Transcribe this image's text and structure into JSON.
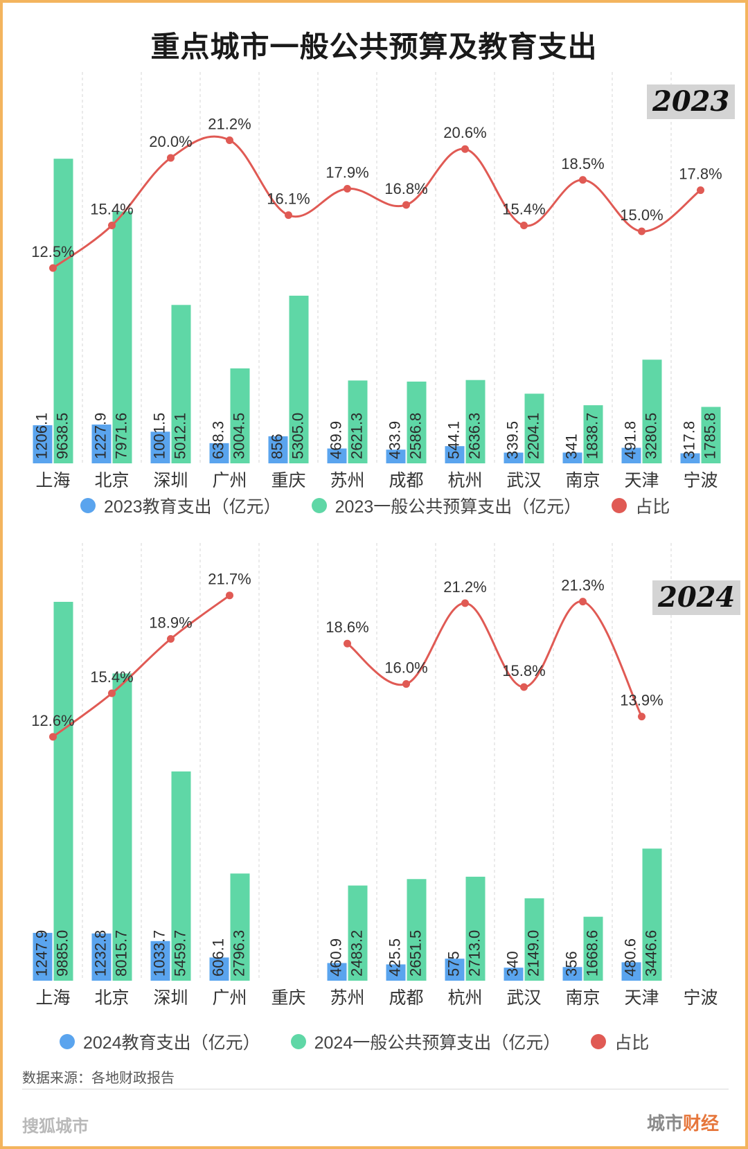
{
  "title": "重点城市一般公共预算及教育支出",
  "categories": [
    "上海",
    "北京",
    "深圳",
    "广州",
    "重庆",
    "苏州",
    "成都",
    "杭州",
    "武汉",
    "南京",
    "天津",
    "宁波"
  ],
  "colors": {
    "edu": "#5aa4ee",
    "budget": "#5fd7a6",
    "ratio": "#e05a54"
  },
  "chart_data": [
    {
      "type": "bar",
      "year_label": "2023",
      "categories": [
        "上海",
        "北京",
        "深圳",
        "广州",
        "重庆",
        "苏州",
        "成都",
        "杭州",
        "武汉",
        "南京",
        "天津",
        "宁波"
      ],
      "series": [
        {
          "name": "2023教育支出（亿元）",
          "type": "bar",
          "values": [
            1206.1,
            1227.9,
            1001.5,
            638.3,
            856,
            469.9,
            433.9,
            544.1,
            339.5,
            341,
            491.8,
            317.8
          ],
          "labels": [
            "1206.1",
            "1227.9",
            "1001.5",
            "638.3",
            "856",
            "469.9",
            "433.9",
            "544.1",
            "339.5",
            "341",
            "491.8",
            "317.8"
          ]
        },
        {
          "name": "2023一般公共预算支出（亿元）",
          "type": "bar",
          "values": [
            9638.5,
            7971.6,
            5012.1,
            3004.5,
            5305.0,
            2621.3,
            2586.8,
            2636.3,
            2204.1,
            1838.7,
            3280.5,
            1785.8
          ],
          "labels": [
            "9638.5",
            "7971.6",
            "5012.1",
            "3004.5",
            "5305.0",
            "2621.3",
            "2586.8",
            "2636.3",
            "2204.1",
            "1838.7",
            "3280.5",
            "1785.8"
          ]
        },
        {
          "name": "占比",
          "type": "line",
          "values": [
            12.5,
            15.4,
            20.0,
            21.2,
            16.1,
            17.9,
            16.8,
            20.6,
            15.4,
            18.5,
            15.0,
            17.8
          ],
          "labels": [
            "12.5%",
            "15.4%",
            "20.0%",
            "21.2%",
            "16.1%",
            "17.9%",
            "16.8%",
            "20.6%",
            "15.4%",
            "18.5%",
            "15.0%",
            "17.8%"
          ]
        }
      ],
      "legend": [
        "2023教育支出（亿元）",
        "2023一般公共预算支出（亿元）",
        "占比"
      ]
    },
    {
      "type": "bar",
      "year_label": "2024",
      "categories": [
        "上海",
        "北京",
        "深圳",
        "广州",
        "重庆",
        "苏州",
        "成都",
        "杭州",
        "武汉",
        "南京",
        "天津",
        "宁波"
      ],
      "series": [
        {
          "name": "2024教育支出（亿元）",
          "type": "bar",
          "values": [
            1247.9,
            1232.8,
            1033.7,
            606.1,
            null,
            460.9,
            425.5,
            575,
            340,
            356,
            480.6,
            null
          ],
          "labels": [
            "1247.9",
            "1232.8",
            "1033.7",
            "606.1",
            "",
            "460.9",
            "425.5",
            "575",
            "340",
            "356",
            "480.6",
            ""
          ]
        },
        {
          "name": "2024一般公共预算支出（亿元）",
          "type": "bar",
          "values": [
            9885.0,
            8015.7,
            5459.7,
            2796.3,
            null,
            2483.2,
            2651.5,
            2713.0,
            2149.0,
            1668.6,
            3446.6,
            null
          ],
          "labels": [
            "9885.0",
            "8015.7",
            "5459.7",
            "2796.3",
            "",
            "2483.2",
            "2651.5",
            "2713.0",
            "2149.0",
            "1668.6",
            "3446.6",
            ""
          ]
        },
        {
          "name": "占比",
          "type": "line",
          "values": [
            12.6,
            15.4,
            18.9,
            21.7,
            null,
            18.6,
            16.0,
            21.2,
            15.8,
            21.3,
            13.9,
            null
          ],
          "labels": [
            "12.6%",
            "15.4%",
            "18.9%",
            "21.7%",
            "",
            "18.6%",
            "16.0%",
            "21.2%",
            "15.8%",
            "21.3%",
            "13.9%",
            ""
          ]
        }
      ],
      "legend": [
        "2024教育支出（亿元）",
        "2024一般公共预算支出（亿元）",
        "占比"
      ]
    }
  ],
  "source": "数据来源：各地财政报告",
  "footer_left": "搜狐城市",
  "footer_right_a": "城市",
  "footer_right_b": "财经"
}
